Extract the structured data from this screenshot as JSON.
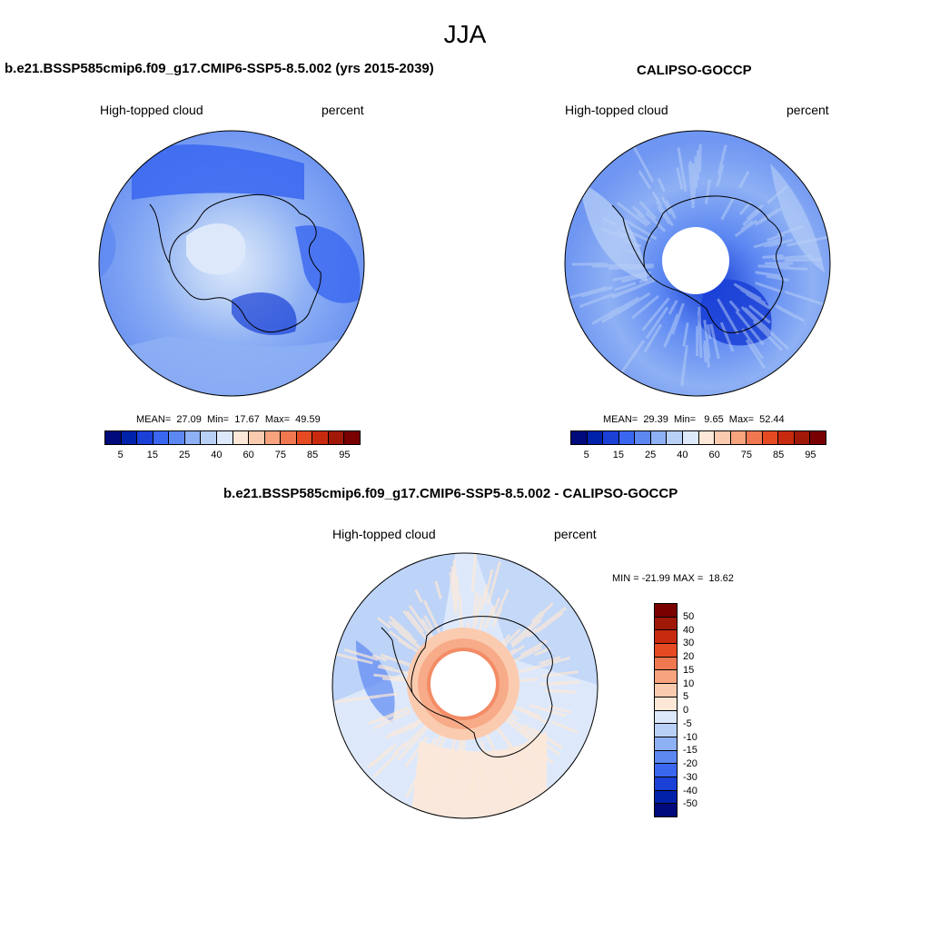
{
  "title": "JJA",
  "panels": [
    {
      "title": "b.e21.BSSP585cmip6.f09_g17.CMIP6-SSP5-8.5.002 (yrs 2015-2039)",
      "variable": "High-topped cloud",
      "units": "percent",
      "stats": "MEAN=  27.09  Min=  17.67  Max=  49.59",
      "colorbar_labels": [
        "5",
        "15",
        "25",
        "40",
        "60",
        "75",
        "85",
        "95"
      ]
    },
    {
      "title": "CALIPSO-GOCCP",
      "variable": "High-topped cloud",
      "units": "percent",
      "stats": "MEAN=  29.39  Min=   9.65  Max=  52.44",
      "colorbar_labels": [
        "5",
        "15",
        "25",
        "40",
        "60",
        "75",
        "85",
        "95"
      ]
    },
    {
      "title": "b.e21.BSSP585cmip6.f09_g17.CMIP6-SSP5-8.5.002 - CALIPSO-GOCCP",
      "variable": "High-topped cloud",
      "units": "percent",
      "stats": "MIN = -21.99 MAX =  18.62",
      "colorbar_labels": [
        "50",
        "40",
        "30",
        "20",
        "15",
        "10",
        "5",
        "0",
        "-5",
        "-10",
        "-15",
        "-20",
        "-30",
        "-40",
        "-50"
      ]
    }
  ],
  "colors": {
    "abs_scale": [
      "#000a7a",
      "#0022aa",
      "#1a40d6",
      "#3a66f0",
      "#5d88f2",
      "#8eb0f4",
      "#b9d0f6",
      "#dde9fb",
      "#fde8d8",
      "#fbcbb0",
      "#f6a37e",
      "#f07850",
      "#e64a22",
      "#c82a10",
      "#a01808",
      "#780000"
    ],
    "diff_scale": [
      "#7a0000",
      "#a01808",
      "#c82a10",
      "#e64a22",
      "#f07850",
      "#f6a37e",
      "#fbcbb0",
      "#fde8d8",
      "#dde9fb",
      "#b9d0f6",
      "#8eb0f4",
      "#5d88f2",
      "#3a66f0",
      "#1a40d6",
      "#0022aa",
      "#000a7a"
    ],
    "land_outline": "#000000"
  }
}
